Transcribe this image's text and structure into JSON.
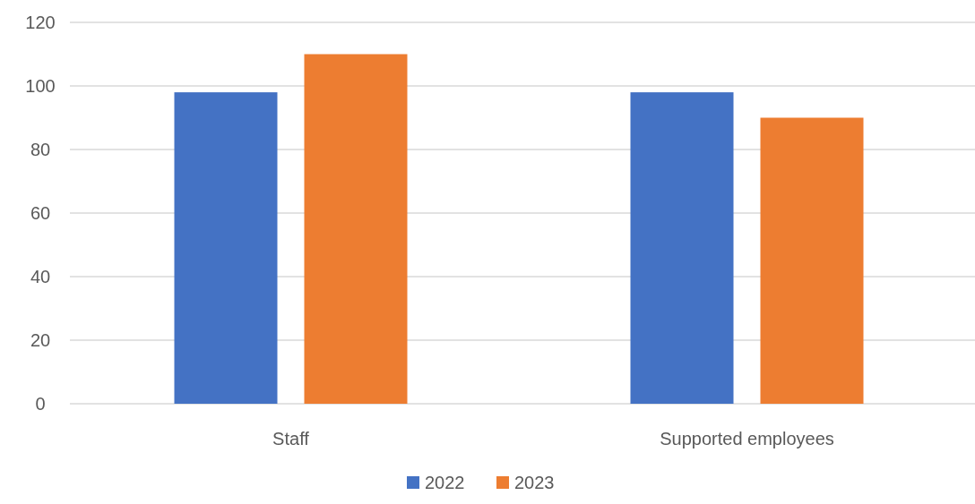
{
  "chart_data": {
    "type": "bar",
    "categories": [
      "Staff",
      "Supported employees"
    ],
    "series": [
      {
        "name": "2022",
        "color": "#4472c4",
        "values": [
          98,
          98
        ]
      },
      {
        "name": "2023",
        "color": "#ed7d31",
        "values": [
          110,
          90
        ]
      }
    ],
    "ylim": [
      0,
      120
    ],
    "yticks": [
      0,
      20,
      40,
      60,
      80,
      100,
      120
    ],
    "grid": "y",
    "legend": "bottom"
  }
}
